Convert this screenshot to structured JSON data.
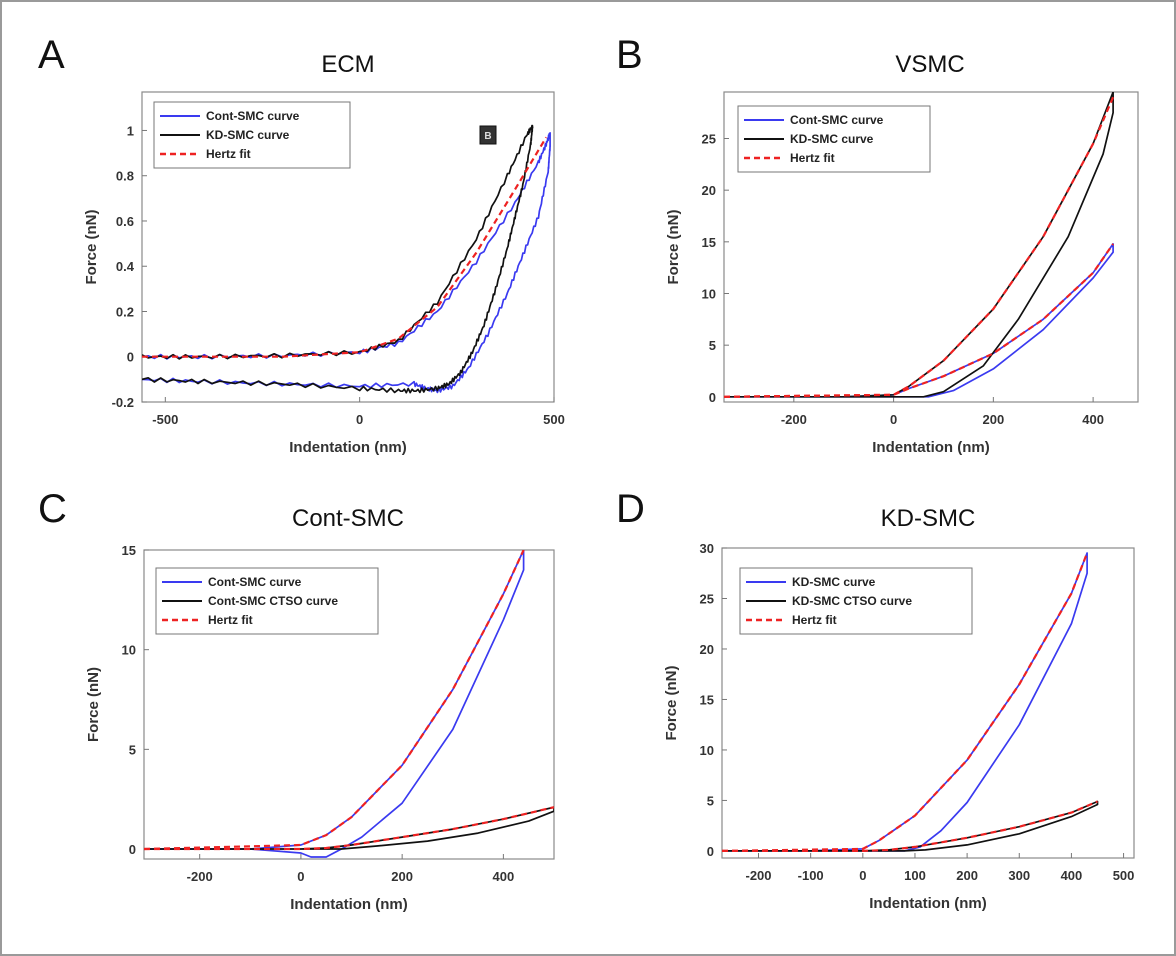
{
  "figure": {
    "colors": {
      "cont": "#3a3af0",
      "kd": "#111111",
      "fit": "#ee2222"
    }
  },
  "chart_data": [
    {
      "panel": "A",
      "type": "line",
      "title": "ECM",
      "xlabel": "Indentation (nm)",
      "ylabel": "Force (nN)",
      "xlim": [
        -560,
        500
      ],
      "ylim": [
        -0.2,
        1.17
      ],
      "xticks": [
        -500,
        0,
        500
      ],
      "yticks": [
        -0.2,
        0,
        0.2,
        0.4,
        0.6,
        0.8,
        1
      ],
      "yticklabels": [
        "-0.2",
        "0",
        "0.2",
        "0.4",
        "0.6",
        "0.8",
        "1"
      ],
      "legend": [
        "Cont-SMC curve",
        "KD-SMC curve",
        "Hertz fit"
      ],
      "annotation": "B",
      "series": [
        {
          "name": "Cont-SMC curve",
          "color": "cont",
          "dash": false,
          "noise": 0.012,
          "x": [
            -560,
            -400,
            -200,
            0,
            100,
            200,
            300,
            400,
            460,
            480,
            490,
            490,
            485,
            460,
            420,
            380,
            330,
            280,
            240,
            200,
            170,
            140,
            0,
            -200,
            -400,
            -560
          ],
          "y": [
            0,
            0,
            0.005,
            0.02,
            0.06,
            0.2,
            0.42,
            0.68,
            0.86,
            0.94,
            0.99,
            0.93,
            0.82,
            0.62,
            0.45,
            0.28,
            0.1,
            -0.05,
            -0.13,
            -0.15,
            -0.14,
            -0.12,
            -0.13,
            -0.12,
            -0.11,
            -0.1
          ]
        },
        {
          "name": "KD-SMC curve",
          "color": "kd",
          "dash": false,
          "noise": 0.012,
          "x": [
            -560,
            -400,
            -200,
            0,
            100,
            200,
            300,
            380,
            430,
            445,
            440,
            420,
            400,
            380,
            350,
            320,
            290,
            260,
            230,
            200,
            150,
            100,
            0,
            -200,
            -400,
            -560
          ],
          "y": [
            0,
            0,
            0.005,
            0.02,
            0.07,
            0.24,
            0.52,
            0.8,
            0.98,
            1.02,
            0.94,
            0.76,
            0.62,
            0.48,
            0.3,
            0.14,
            0.02,
            -0.07,
            -0.12,
            -0.14,
            -0.15,
            -0.15,
            -0.14,
            -0.12,
            -0.11,
            -0.1
          ]
        },
        {
          "name": "Hertz fit",
          "color": "fit",
          "dash": true,
          "x": [
            -560,
            -200,
            0,
            100,
            200,
            300,
            400,
            480
          ],
          "y": [
            0,
            0,
            0.02,
            0.08,
            0.22,
            0.46,
            0.74,
            0.97
          ]
        }
      ]
    },
    {
      "panel": "B",
      "type": "line",
      "title": "VSMC",
      "xlabel": "Indentation (nm)",
      "ylabel": "Force (nN)",
      "xlim": [
        -340,
        490
      ],
      "ylim": [
        -0.5,
        29.5
      ],
      "xticks": [
        -200,
        0,
        200,
        400
      ],
      "yticks": [
        0,
        5,
        10,
        15,
        20,
        25
      ],
      "yticklabels": [
        "0",
        "5",
        "10",
        "15",
        "20",
        "25"
      ],
      "legend": [
        "Cont-SMC curve",
        "KD-SMC curve",
        "Hertz fit"
      ],
      "series": [
        {
          "name": "Cont-SMC curve",
          "color": "cont",
          "dash": false,
          "x": [
            -340,
            -100,
            0,
            30,
            100,
            200,
            300,
            400,
            440,
            440,
            400,
            300,
            200,
            120,
            70,
            0,
            -340
          ],
          "y": [
            0,
            0,
            0.2,
            0.8,
            2.0,
            4.2,
            7.5,
            12.0,
            14.8,
            14.0,
            11.5,
            6.5,
            2.7,
            0.6,
            0,
            0,
            0
          ]
        },
        {
          "name": "KD-SMC curve",
          "color": "kd",
          "dash": false,
          "x": [
            -340,
            -100,
            0,
            30,
            100,
            200,
            300,
            400,
            440,
            440,
            420,
            350,
            250,
            180,
            100,
            60,
            0,
            -340
          ],
          "y": [
            0,
            0,
            0.2,
            1.0,
            3.5,
            8.5,
            15.5,
            24.5,
            29.5,
            27.5,
            23.5,
            15.5,
            7.5,
            3.0,
            0.5,
            0,
            0,
            0
          ]
        },
        {
          "name": "Hertz fit",
          "color": "fit",
          "dash": true,
          "x": [
            -340,
            0,
            30,
            100,
            200,
            300,
            400,
            440
          ],
          "y": [
            0,
            0.2,
            1.0,
            3.5,
            8.5,
            15.5,
            24.5,
            29
          ]
        },
        {
          "name": "",
          "color": "fit",
          "dash": true,
          "x": [
            -340,
            0,
            30,
            100,
            200,
            300,
            400,
            440
          ],
          "y": [
            0,
            0.2,
            0.8,
            2.0,
            4.2,
            7.5,
            12.0,
            14.8
          ]
        }
      ]
    },
    {
      "panel": "C",
      "type": "line",
      "title": "Cont-SMC",
      "xlabel": "Indentation (nm)",
      "ylabel": "Force (nN)",
      "xlim": [
        -310,
        500
      ],
      "ylim": [
        -0.5,
        15
      ],
      "xticks": [
        -200,
        0,
        200,
        400
      ],
      "yticks": [
        0,
        5,
        10,
        15
      ],
      "yticklabels": [
        "0",
        "5",
        "10",
        "15"
      ],
      "legend": [
        "Cont-SMC curve",
        "Cont-SMC CTSO curve",
        "Hertz fit"
      ],
      "series": [
        {
          "name": "Cont-SMC curve",
          "color": "cont",
          "dash": false,
          "x": [
            -310,
            -100,
            0,
            50,
            100,
            200,
            300,
            400,
            440,
            440,
            400,
            300,
            200,
            120,
            80,
            50,
            20,
            0,
            -100,
            -310
          ],
          "y": [
            0,
            0,
            0.2,
            0.7,
            1.6,
            4.2,
            8.0,
            12.8,
            15.0,
            14.0,
            11.5,
            6.0,
            2.3,
            0.6,
            0,
            -0.4,
            -0.4,
            -0.2,
            0,
            0
          ]
        },
        {
          "name": "Cont-SMC CTSO curve",
          "color": "kd",
          "dash": false,
          "x": [
            -310,
            0,
            50,
            100,
            200,
            300,
            400,
            500,
            500,
            450,
            350,
            250,
            150,
            80,
            40,
            0,
            -310
          ],
          "y": [
            0,
            0,
            0.05,
            0.2,
            0.6,
            1.0,
            1.5,
            2.1,
            1.9,
            1.4,
            0.8,
            0.4,
            0.15,
            0,
            0,
            0,
            0
          ]
        },
        {
          "name": "Hertz fit",
          "color": "fit",
          "dash": true,
          "x": [
            -310,
            0,
            50,
            100,
            200,
            300,
            400,
            440
          ],
          "y": [
            0,
            0.2,
            0.7,
            1.6,
            4.2,
            8.0,
            12.8,
            15.0
          ]
        },
        {
          "name": "",
          "color": "fit",
          "dash": true,
          "x": [
            -310,
            0,
            50,
            100,
            200,
            300,
            400,
            500
          ],
          "y": [
            0,
            0,
            0.05,
            0.2,
            0.6,
            1.0,
            1.5,
            2.1
          ]
        }
      ]
    },
    {
      "panel": "D",
      "type": "line",
      "title": "KD-SMC",
      "xlabel": "Indentation (nm)",
      "ylabel": "Force (nN)",
      "xlim": [
        -270,
        520
      ],
      "ylim": [
        -0.7,
        30
      ],
      "xticks": [
        -200,
        -100,
        0,
        100,
        200,
        300,
        400,
        500
      ],
      "yticks": [
        0,
        5,
        10,
        15,
        20,
        25,
        30
      ],
      "yticklabels": [
        "0",
        "5",
        "10",
        "15",
        "20",
        "25",
        "30"
      ],
      "legend": [
        "KD-SMC curve",
        "KD-SMC CTSO curve",
        "Hertz fit"
      ],
      "series": [
        {
          "name": "KD-SMC curve",
          "color": "cont",
          "dash": false,
          "x": [
            -270,
            -100,
            0,
            30,
            100,
            200,
            300,
            400,
            430,
            430,
            400,
            300,
            200,
            150,
            110,
            80,
            0,
            -270
          ],
          "y": [
            0,
            0,
            0.2,
            1.0,
            3.5,
            9.0,
            16.5,
            25.5,
            29.5,
            27.5,
            22.5,
            12.5,
            4.8,
            2.0,
            0.4,
            0,
            0,
            0
          ]
        },
        {
          "name": "KD-SMC CTSO curve",
          "color": "kd",
          "dash": false,
          "x": [
            -270,
            0,
            50,
            100,
            200,
            300,
            400,
            450,
            450,
            400,
            300,
            200,
            120,
            80,
            0,
            -270
          ],
          "y": [
            0,
            0,
            0.1,
            0.4,
            1.3,
            2.4,
            3.8,
            4.9,
            4.6,
            3.4,
            1.7,
            0.6,
            0.1,
            0,
            0,
            0
          ]
        },
        {
          "name": "Hertz fit",
          "color": "fit",
          "dash": true,
          "x": [
            -270,
            0,
            30,
            100,
            200,
            300,
            400,
            430
          ],
          "y": [
            0,
            0.2,
            1.0,
            3.5,
            9.0,
            16.5,
            25.5,
            29.5
          ]
        },
        {
          "name": "",
          "color": "fit",
          "dash": true,
          "x": [
            -270,
            0,
            50,
            100,
            200,
            300,
            400,
            450
          ],
          "y": [
            0,
            0,
            0.1,
            0.4,
            1.3,
            2.4,
            3.8,
            4.9
          ]
        }
      ]
    }
  ]
}
